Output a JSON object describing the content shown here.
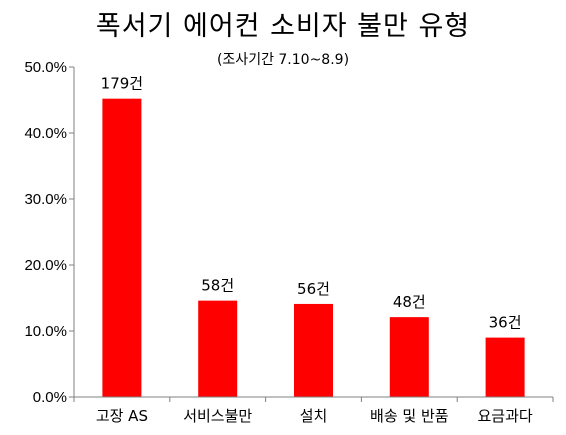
{
  "chart_data": {
    "type": "bar",
    "title": "폭서기 에어컨 소비자 불만 유형",
    "subtitle": "(조사기간 7.10~8.9)",
    "categories": [
      "고장 AS",
      "서비스불만",
      "설치",
      "배송 및 반품",
      "요금과다"
    ],
    "values": [
      45.2,
      14.6,
      14.1,
      12.1,
      9.0
    ],
    "value_labels": [
      "179건",
      "58건",
      "56건",
      "48건",
      "36건"
    ],
    "yticks": [
      "0.0%",
      "10.0%",
      "20.0%",
      "30.0%",
      "40.0%",
      "50.0%"
    ],
    "ylim": [
      0,
      50
    ],
    "xlabel": "",
    "ylabel": "",
    "grid": false,
    "bar_color": "#ff0000"
  }
}
